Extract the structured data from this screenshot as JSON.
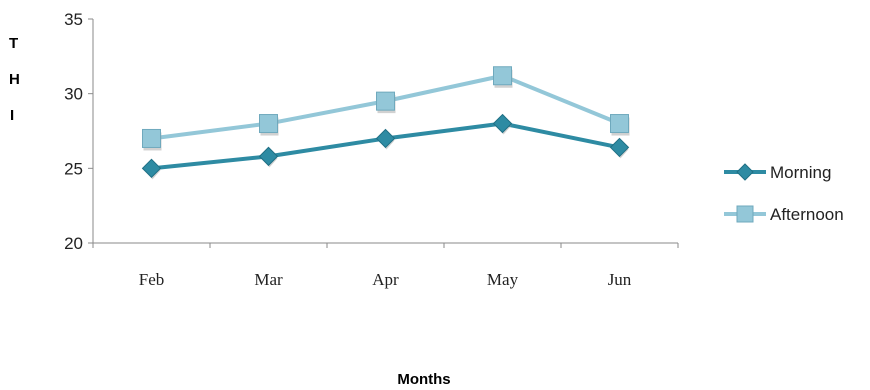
{
  "chart_data": {
    "type": "line",
    "categories": [
      "Feb",
      "Mar",
      "Apr",
      "May",
      "Jun"
    ],
    "series": [
      {
        "name": "Morning",
        "values": [
          25,
          25.8,
          27,
          28,
          26.4
        ],
        "color": "#2e8ba3",
        "marker": "diamond"
      },
      {
        "name": "Afternoon",
        "values": [
          27,
          28,
          29.5,
          31.2,
          28
        ],
        "color": "#93c7d8",
        "marker": "square"
      }
    ],
    "xlabel": "Months",
    "ylabel_fragments": [
      "T",
      "H",
      "I"
    ],
    "ylim": [
      20,
      35
    ],
    "yticks": [
      20,
      25,
      30,
      35
    ],
    "grid": false,
    "legend_position": "right"
  }
}
